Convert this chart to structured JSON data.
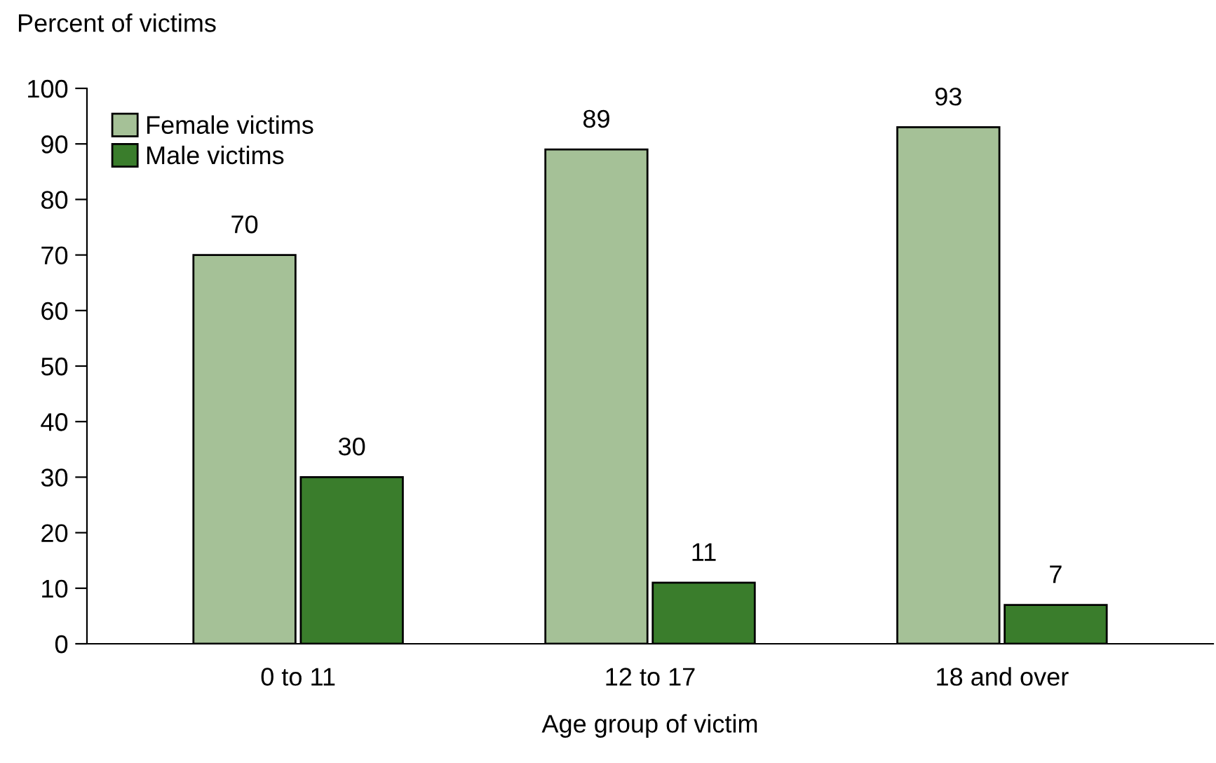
{
  "chart_data": {
    "type": "bar",
    "ylabel": "Percent of victims",
    "xlabel": "Age group of victim",
    "categories": [
      "0 to 11",
      "12 to 17",
      "18 and over"
    ],
    "series": [
      {
        "name": "Female victims",
        "color": "#a5c197",
        "values": [
          70,
          89,
          93
        ]
      },
      {
        "name": "Male victims",
        "color": "#3a7d2c",
        "values": [
          30,
          11,
          7
        ]
      }
    ],
    "ylim": [
      0,
      100
    ],
    "yticks": [
      0,
      10,
      20,
      30,
      40,
      50,
      60,
      70,
      80,
      90,
      100
    ],
    "grid": false,
    "legend": "top left",
    "data_labels": true
  }
}
